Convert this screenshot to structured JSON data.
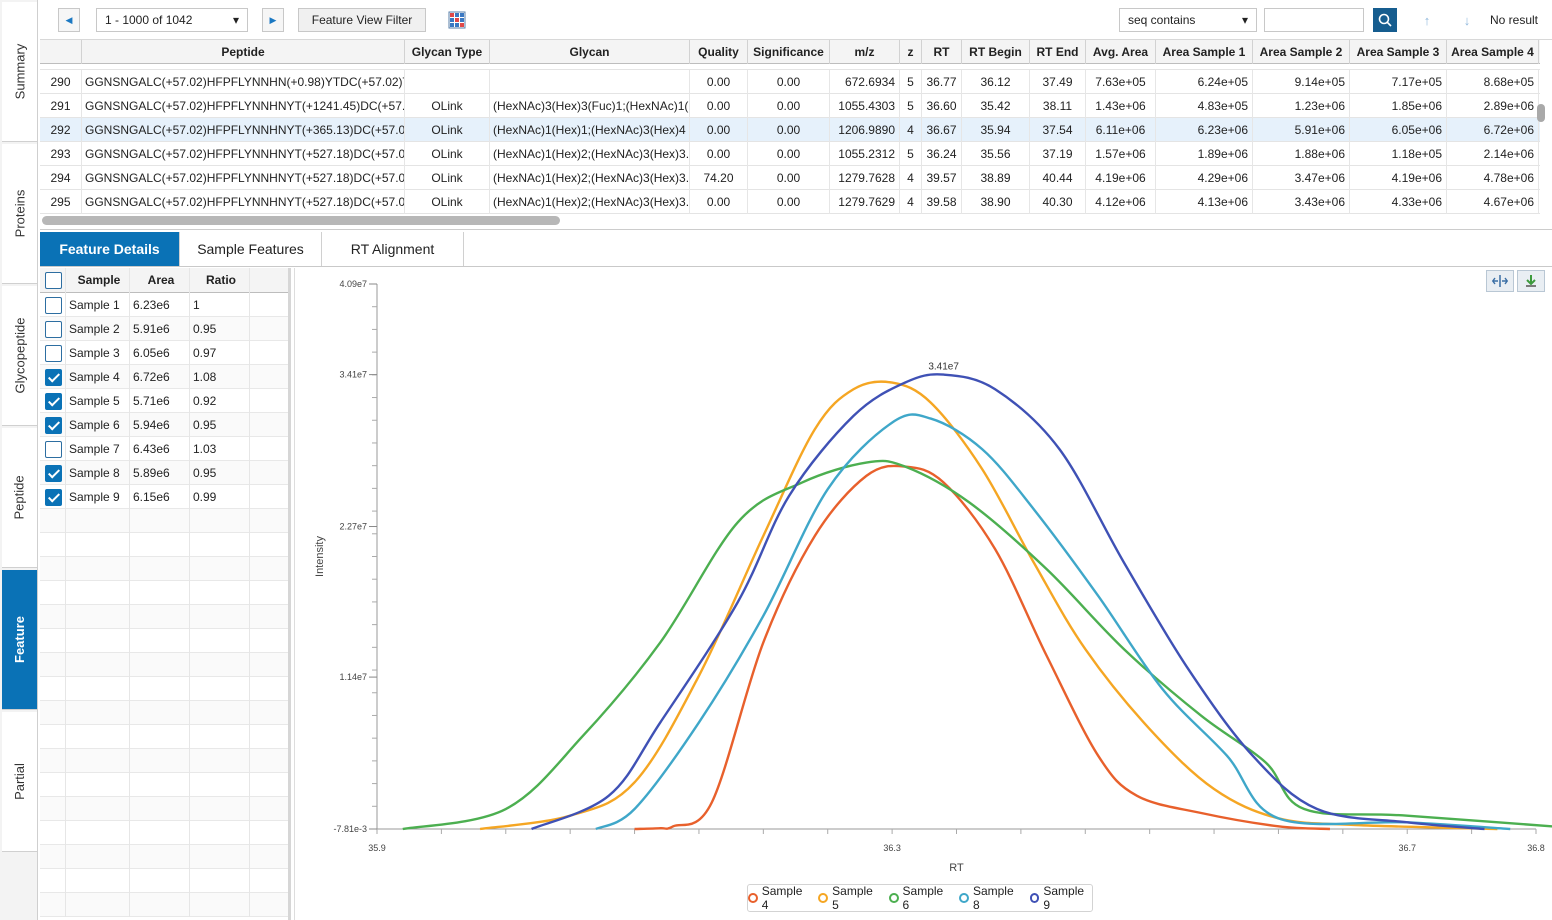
{
  "side_tabs": [
    "Summary",
    "Proteins",
    "Glycopeptide",
    "Peptide",
    "Feature",
    "Partial"
  ],
  "active_side_tab": "Feature",
  "toolbar": {
    "pager": "1 - 1000 of 1042",
    "feature_view_filter": "Feature View Filter",
    "search_mode": "seq contains",
    "search_value": "",
    "result": "No result"
  },
  "grid": {
    "columns": [
      "Peptide",
      "Glycan Type",
      "Glycan",
      "Quality",
      "Significance",
      "m/z",
      "z",
      "RT",
      "RT Begin",
      "RT End",
      "Avg. Area",
      "Area Sample 1",
      "Area Sample 2",
      "Area Sample 3",
      "Area Sample 4"
    ],
    "rows": [
      {
        "id": "290",
        "peptide": "GGNSNGALC(+57.02)HFPFLYNNHN(+0.98)YTDC(+57.02)T...",
        "glycan_type": "",
        "glycan": "",
        "quality": "0.00",
        "significance": "0.00",
        "mz": "672.6934",
        "z": "5",
        "rt": "36.77",
        "rt_begin": "36.12",
        "rt_end": "37.49",
        "avg_area": "7.63e+05",
        "a1": "6.24e+05",
        "a2": "9.14e+05",
        "a3": "7.17e+05",
        "a4": "8.68e+05"
      },
      {
        "id": "291",
        "peptide": "GGNSNGALC(+57.02)HFPFLYNNHNYT(+1241.45)DC(+57.0...",
        "glycan_type": "OLink",
        "glycan": "(HexNAc)3(Hex)3(Fuc)1;(HexNAc)1(...",
        "quality": "0.00",
        "significance": "0.00",
        "mz": "1055.4303",
        "z": "5",
        "rt": "36.60",
        "rt_begin": "35.42",
        "rt_end": "38.11",
        "avg_area": "1.43e+06",
        "a1": "4.83e+05",
        "a2": "1.23e+06",
        "a3": "1.85e+06",
        "a4": "2.89e+06"
      },
      {
        "id": "292",
        "peptide": "GGNSNGALC(+57.02)HFPFLYNNHNYT(+365.13)DC(+57.02...",
        "glycan_type": "OLink",
        "glycan": "(HexNAc)1(Hex)1;(HexNAc)3(Hex)4",
        "quality": "0.00",
        "significance": "0.00",
        "mz": "1206.9890",
        "z": "4",
        "rt": "36.67",
        "rt_begin": "35.94",
        "rt_end": "37.54",
        "avg_area": "6.11e+06",
        "a1": "6.23e+06",
        "a2": "5.91e+06",
        "a3": "6.05e+06",
        "a4": "6.72e+06"
      },
      {
        "id": "293",
        "peptide": "GGNSNGALC(+57.02)HFPFLYNNHNYT(+527.18)DC(+57.02...",
        "glycan_type": "OLink",
        "glycan": "(HexNAc)1(Hex)2;(HexNAc)3(Hex)3...",
        "quality": "0.00",
        "significance": "0.00",
        "mz": "1055.2312",
        "z": "5",
        "rt": "36.24",
        "rt_begin": "35.56",
        "rt_end": "37.19",
        "avg_area": "1.57e+06",
        "a1": "1.89e+06",
        "a2": "1.88e+06",
        "a3": "1.18e+05",
        "a4": "2.14e+06"
      },
      {
        "id": "294",
        "peptide": "GGNSNGALC(+57.02)HFPFLYNNHNYT(+527.18)DC(+57.02...",
        "glycan_type": "OLink",
        "glycan": "(HexNAc)1(Hex)2;(HexNAc)3(Hex)3...",
        "quality": "74.20",
        "significance": "0.00",
        "mz": "1279.7628",
        "z": "4",
        "rt": "39.57",
        "rt_begin": "38.89",
        "rt_end": "40.44",
        "avg_area": "4.19e+06",
        "a1": "4.29e+06",
        "a2": "3.47e+06",
        "a3": "4.19e+06",
        "a4": "4.78e+06"
      },
      {
        "id": "295",
        "peptide": "GGNSNGALC(+57.02)HFPFLYNNHNYT(+527.18)DC(+57.02...",
        "glycan_type": "OLink",
        "glycan": "(HexNAc)1(Hex)2;(HexNAc)3(Hex)3...",
        "quality": "0.00",
        "significance": "0.00",
        "mz": "1279.7629",
        "z": "4",
        "rt": "39.58",
        "rt_begin": "38.90",
        "rt_end": "40.30",
        "avg_area": "4.12e+06",
        "a1": "4.13e+06",
        "a2": "3.43e+06",
        "a3": "4.33e+06",
        "a4": "4.67e+06"
      }
    ],
    "selected_row": "292"
  },
  "detail_tabs": [
    "Feature Details",
    "Sample Features",
    "RT Alignment"
  ],
  "samples": {
    "columns": [
      "Sample",
      "Area",
      "Ratio"
    ],
    "rows": [
      {
        "name": "Sample 1",
        "area": "6.23e6",
        "ratio": "1",
        "checked": false
      },
      {
        "name": "Sample 2",
        "area": "5.91e6",
        "ratio": "0.95",
        "checked": false
      },
      {
        "name": "Sample 3",
        "area": "6.05e6",
        "ratio": "0.97",
        "checked": false
      },
      {
        "name": "Sample 4",
        "area": "6.72e6",
        "ratio": "1.08",
        "checked": true
      },
      {
        "name": "Sample 5",
        "area": "5.71e6",
        "ratio": "0.92",
        "checked": true
      },
      {
        "name": "Sample 6",
        "area": "5.94e6",
        "ratio": "0.95",
        "checked": true
      },
      {
        "name": "Sample 7",
        "area": "6.43e6",
        "ratio": "1.03",
        "checked": false
      },
      {
        "name": "Sample 8",
        "area": "5.89e6",
        "ratio": "0.95",
        "checked": true
      },
      {
        "name": "Sample 9",
        "area": "6.15e6",
        "ratio": "0.99",
        "checked": true
      }
    ]
  },
  "chart_data": {
    "type": "line",
    "xlabel": "RT",
    "ylabel": "Intensity",
    "xlim": [
      35.9,
      36.8
    ],
    "ylim": [
      -0.00781,
      40900000.0
    ],
    "x_ticks": [
      "35.9",
      "36.3",
      "36.7",
      "36.8"
    ],
    "y_ticks": [
      "-7.81e-3",
      "1.14e7",
      "2.27e7",
      "3.41e7",
      "4.09e7"
    ],
    "peak_label": "3.41e7",
    "legend_position": "bottom-center",
    "series": [
      {
        "name": "Sample 4",
        "color": "#e8602c",
        "points": [
          [
            36.12,
            60000.0
          ],
          [
            36.1,
            0
          ],
          [
            36.13,
            200000.0
          ],
          [
            36.16,
            2000000.0
          ],
          [
            36.2,
            14000000.0
          ],
          [
            36.24,
            22000000.0
          ],
          [
            36.28,
            26500000.0
          ],
          [
            36.31,
            27200000.0
          ],
          [
            36.34,
            26000000.0
          ],
          [
            36.38,
            21000000.0
          ],
          [
            36.42,
            13000000.0
          ],
          [
            36.46,
            5500000.0
          ],
          [
            36.49,
            2500000.0
          ],
          [
            36.54,
            1200000.0
          ],
          [
            36.6,
            200000.0
          ],
          [
            36.64,
            0
          ]
        ]
      },
      {
        "name": "Sample 5",
        "color": "#f5a623",
        "points": [
          [
            35.98,
            0
          ],
          [
            36.05,
            1000000.0
          ],
          [
            36.1,
            3500000.0
          ],
          [
            36.15,
            11500000.0
          ],
          [
            36.2,
            22000000.0
          ],
          [
            36.24,
            30000000.0
          ],
          [
            36.27,
            33000000.0
          ],
          [
            36.3,
            33500000.0
          ],
          [
            36.33,
            32000000.0
          ],
          [
            36.37,
            27000000.0
          ],
          [
            36.41,
            20000000.0
          ],
          [
            36.45,
            13500000.0
          ],
          [
            36.5,
            7500000.0
          ],
          [
            36.55,
            3000000.0
          ],
          [
            36.6,
            800000.0
          ],
          [
            36.66,
            300000.0
          ],
          [
            36.77,
            0
          ]
        ]
      },
      {
        "name": "Sample 6",
        "color": "#4caf50",
        "points": [
          [
            35.92,
            0
          ],
          [
            36.0,
            1500000.0
          ],
          [
            36.06,
            7000000.0
          ],
          [
            36.12,
            14000000.0
          ],
          [
            36.18,
            23000000.0
          ],
          [
            36.23,
            26000000.0
          ],
          [
            36.28,
            27500000.0
          ],
          [
            36.31,
            27200000.0
          ],
          [
            36.36,
            24500000.0
          ],
          [
            36.42,
            19500000.0
          ],
          [
            36.48,
            13500000.0
          ],
          [
            36.54,
            8500000.0
          ],
          [
            36.59,
            5000000.0
          ],
          [
            36.62,
            1500000.0
          ],
          [
            36.7,
            1000000.0
          ],
          [
            36.84,
            0
          ]
        ]
      },
      {
        "name": "Sample 8",
        "color": "#3fa7c9",
        "points": [
          [
            36.07,
            0
          ],
          [
            36.1,
            1500000.0
          ],
          [
            36.15,
            8000000.0
          ],
          [
            36.2,
            16000000.0
          ],
          [
            36.25,
            25500000.0
          ],
          [
            36.3,
            30500000.0
          ],
          [
            36.33,
            30800000.0
          ],
          [
            36.37,
            28500000.0
          ],
          [
            36.41,
            24000000.0
          ],
          [
            36.46,
            17500000.0
          ],
          [
            36.51,
            10500000.0
          ],
          [
            36.56,
            5500000.0
          ],
          [
            36.6,
            800000.0
          ],
          [
            36.7,
            500000.0
          ],
          [
            36.78,
            0
          ]
        ]
      },
      {
        "name": "Sample 9",
        "color": "#3f51b5",
        "points": [
          [
            36.02,
            0
          ],
          [
            36.08,
            2500000.0
          ],
          [
            36.12,
            8000000.0
          ],
          [
            36.18,
            17000000.0
          ],
          [
            36.22,
            25000000.0
          ],
          [
            36.27,
            31000000.0
          ],
          [
            36.31,
            33500000.0
          ],
          [
            36.34,
            34100000.0
          ],
          [
            36.38,
            33000000.0
          ],
          [
            36.43,
            28500000.0
          ],
          [
            36.48,
            20000000.0
          ],
          [
            36.53,
            12000000.0
          ],
          [
            36.58,
            5500000.0
          ],
          [
            36.63,
            1500000.0
          ],
          [
            36.7,
            500000.0
          ],
          [
            36.76,
            0
          ]
        ]
      }
    ]
  }
}
